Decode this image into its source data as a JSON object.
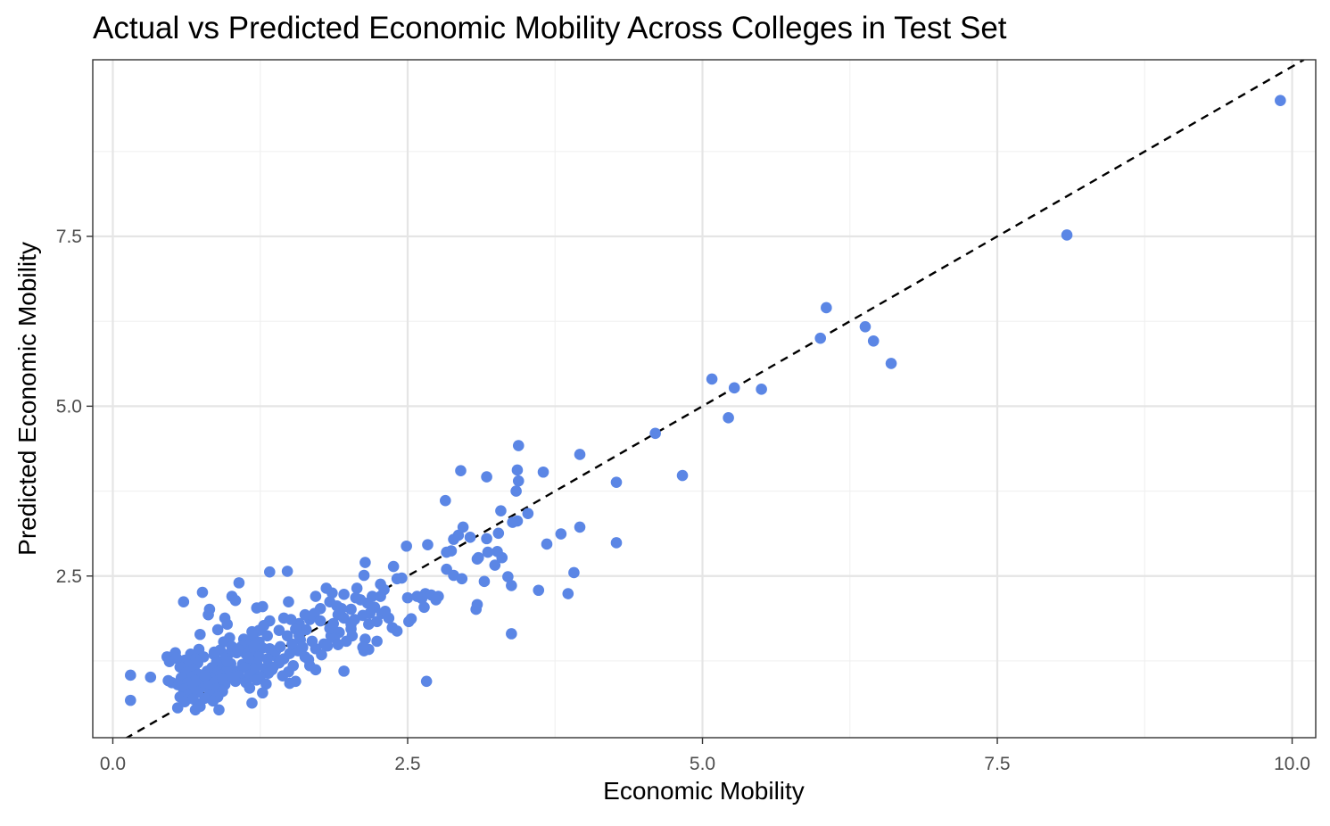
{
  "chart_data": {
    "type": "scatter",
    "title": "Actual vs Predicted Economic Mobility Across Colleges in Test Set",
    "xlabel": "Economic Mobility",
    "ylabel": "Predicted Economic Mobility",
    "xlim": [
      -0.17,
      10.2
    ],
    "ylim": [
      0.12,
      10.1
    ],
    "x_ticks": [
      0.0,
      2.5,
      5.0,
      7.5,
      10.0
    ],
    "x_tick_labels": [
      "0.0",
      "2.5",
      "5.0",
      "7.5",
      "10.0"
    ],
    "y_ticks": [
      2.5,
      5.0,
      7.5
    ],
    "y_tick_labels": [
      "2.5",
      "5.0",
      "7.5"
    ],
    "grid": true,
    "point_color": "#5b86e5",
    "reference_line": {
      "type": "identity",
      "style": "dashed",
      "color": "#000000"
    },
    "points": [
      [
        9.9,
        9.5
      ],
      [
        8.09,
        7.52
      ],
      [
        6.05,
        6.45
      ],
      [
        6.38,
        6.17
      ],
      [
        6.0,
        6.0
      ],
      [
        6.45,
        5.96
      ],
      [
        6.6,
        5.63
      ],
      [
        5.08,
        5.4
      ],
      [
        5.27,
        5.27
      ],
      [
        5.5,
        5.25
      ],
      [
        5.22,
        4.83
      ],
      [
        4.6,
        4.6
      ],
      [
        4.83,
        3.98
      ],
      [
        4.27,
        3.88
      ],
      [
        3.96,
        4.29
      ],
      [
        3.44,
        4.42
      ],
      [
        3.43,
        4.06
      ],
      [
        3.65,
        4.03
      ],
      [
        2.95,
        4.05
      ],
      [
        3.17,
        3.96
      ],
      [
        3.44,
        3.9
      ],
      [
        3.42,
        3.75
      ],
      [
        2.82,
        3.61
      ],
      [
        3.29,
        3.46
      ],
      [
        3.52,
        3.42
      ],
      [
        3.43,
        3.31
      ],
      [
        3.39,
        3.29
      ],
      [
        3.8,
        3.12
      ],
      [
        3.96,
        3.22
      ],
      [
        3.68,
        2.97
      ],
      [
        4.27,
        2.99
      ],
      [
        3.27,
        3.13
      ],
      [
        2.97,
        3.22
      ],
      [
        2.93,
        3.1
      ],
      [
        3.03,
        3.07
      ],
      [
        2.89,
        3.04
      ],
      [
        3.17,
        3.05
      ],
      [
        2.67,
        2.96
      ],
      [
        2.49,
        2.94
      ],
      [
        3.18,
        2.85
      ],
      [
        3.26,
        2.86
      ],
      [
        2.87,
        2.87
      ],
      [
        2.83,
        2.85
      ],
      [
        3.1,
        2.77
      ],
      [
        3.09,
        2.75
      ],
      [
        3.3,
        2.77
      ],
      [
        3.24,
        2.66
      ],
      [
        2.83,
        2.6
      ],
      [
        2.89,
        2.51
      ],
      [
        2.96,
        2.46
      ],
      [
        3.35,
        2.49
      ],
      [
        3.91,
        2.55
      ],
      [
        3.15,
        2.42
      ],
      [
        3.38,
        2.36
      ],
      [
        3.61,
        2.29
      ],
      [
        3.86,
        2.24
      ],
      [
        2.65,
        2.24
      ],
      [
        2.7,
        2.22
      ],
      [
        2.76,
        2.2
      ],
      [
        2.62,
        2.17
      ],
      [
        2.5,
        2.18
      ],
      [
        2.58,
        2.2
      ],
      [
        2.74,
        2.15
      ],
      [
        2.64,
        2.04
      ],
      [
        3.09,
        2.08
      ],
      [
        3.08,
        2.01
      ],
      [
        2.53,
        1.87
      ],
      [
        2.51,
        1.83
      ],
      [
        2.37,
        1.74
      ],
      [
        2.41,
        1.69
      ],
      [
        2.24,
        1.54
      ],
      [
        3.38,
        1.65
      ],
      [
        2.66,
        0.95
      ],
      [
        2.38,
        2.64
      ],
      [
        2.14,
        2.7
      ],
      [
        2.13,
        2.51
      ],
      [
        2.27,
        2.38
      ],
      [
        2.3,
        2.3
      ],
      [
        2.41,
        2.46
      ],
      [
        2.2,
        2.2
      ],
      [
        2.16,
        2.1
      ],
      [
        2.1,
        2.15
      ],
      [
        2.02,
        2.01
      ],
      [
        2.06,
        2.18
      ],
      [
        2.22,
        2.04
      ],
      [
        2.28,
        1.95
      ],
      [
        2.12,
        1.92
      ],
      [
        1.96,
        1.88
      ],
      [
        1.91,
        1.93
      ],
      [
        2.02,
        1.79
      ],
      [
        2.17,
        1.79
      ],
      [
        2.24,
        1.83
      ],
      [
        2.02,
        1.72
      ],
      [
        1.92,
        1.67
      ],
      [
        1.88,
        1.59
      ],
      [
        2.03,
        1.62
      ],
      [
        2.14,
        1.57
      ],
      [
        1.98,
        1.54
      ],
      [
        1.91,
        1.49
      ],
      [
        2.17,
        1.42
      ],
      [
        2.13,
        1.4
      ],
      [
        2.34,
        1.88
      ],
      [
        2.31,
        1.98
      ],
      [
        1.96,
        2.23
      ],
      [
        1.86,
        2.25
      ],
      [
        1.81,
        2.32
      ],
      [
        1.72,
        2.2
      ],
      [
        1.84,
        2.12
      ],
      [
        1.76,
        2.02
      ],
      [
        1.9,
        2.06
      ],
      [
        1.71,
        1.95
      ],
      [
        1.76,
        1.84
      ],
      [
        1.67,
        1.86
      ],
      [
        1.58,
        1.8
      ],
      [
        1.51,
        1.86
      ],
      [
        1.45,
        1.88
      ],
      [
        1.55,
        1.72
      ],
      [
        1.64,
        1.71
      ],
      [
        1.48,
        1.62
      ],
      [
        1.59,
        1.56
      ],
      [
        1.69,
        1.54
      ],
      [
        1.79,
        1.5
      ],
      [
        1.82,
        1.47
      ],
      [
        1.61,
        1.45
      ],
      [
        1.57,
        1.4
      ],
      [
        1.72,
        1.43
      ],
      [
        1.77,
        1.34
      ],
      [
        1.63,
        1.31
      ],
      [
        1.45,
        1.28
      ],
      [
        1.37,
        1.33
      ],
      [
        1.5,
        1.36
      ],
      [
        1.41,
        1.22
      ],
      [
        1.53,
        1.18
      ],
      [
        1.67,
        1.18
      ],
      [
        1.72,
        1.12
      ],
      [
        1.49,
        1.09
      ],
      [
        1.35,
        1.12
      ],
      [
        1.44,
        1.03
      ],
      [
        1.55,
        0.95
      ],
      [
        1.5,
        0.92
      ],
      [
        1.96,
        1.1
      ],
      [
        1.49,
        2.12
      ],
      [
        1.48,
        2.57
      ],
      [
        1.33,
        2.56
      ],
      [
        1.27,
        2.05
      ],
      [
        1.22,
        2.03
      ],
      [
        1.33,
        1.84
      ],
      [
        1.28,
        1.77
      ],
      [
        1.18,
        1.68
      ],
      [
        1.24,
        1.7
      ],
      [
        1.31,
        1.62
      ],
      [
        1.19,
        1.6
      ],
      [
        1.11,
        1.57
      ],
      [
        1.24,
        1.53
      ],
      [
        1.16,
        1.49
      ],
      [
        1.09,
        1.46
      ],
      [
        1.27,
        1.44
      ],
      [
        1.33,
        1.43
      ],
      [
        1.21,
        1.39
      ],
      [
        1.13,
        1.35
      ],
      [
        1.05,
        1.37
      ],
      [
        1.24,
        1.31
      ],
      [
        1.31,
        1.28
      ],
      [
        1.17,
        1.26
      ],
      [
        1.1,
        1.2
      ],
      [
        1.22,
        1.22
      ],
      [
        1.29,
        1.14
      ],
      [
        1.2,
        1.13
      ],
      [
        1.12,
        1.15
      ],
      [
        1.04,
        1.1
      ],
      [
        1.32,
        1.07
      ],
      [
        1.25,
        1.02
      ],
      [
        1.16,
        1.04
      ],
      [
        1.07,
        1.03
      ],
      [
        1.22,
        0.97
      ],
      [
        1.13,
        0.93
      ],
      [
        1.3,
        0.91
      ],
      [
        1.04,
        0.95
      ],
      [
        1.16,
        0.85
      ],
      [
        1.27,
        0.78
      ],
      [
        1.18,
        0.63
      ],
      [
        1.07,
        2.4
      ],
      [
        1.01,
        2.2
      ],
      [
        1.04,
        2.14
      ],
      [
        0.95,
        1.88
      ],
      [
        0.97,
        1.79
      ],
      [
        0.89,
        1.71
      ],
      [
        0.99,
        1.59
      ],
      [
        0.94,
        1.53
      ],
      [
        1.01,
        1.46
      ],
      [
        0.91,
        1.41
      ],
      [
        0.98,
        1.35
      ],
      [
        0.86,
        1.34
      ],
      [
        0.95,
        1.29
      ],
      [
        0.88,
        1.24
      ],
      [
        1.0,
        1.21
      ],
      [
        0.92,
        1.17
      ],
      [
        0.84,
        1.15
      ],
      [
        0.97,
        1.12
      ],
      [
        0.88,
        1.08
      ],
      [
        0.8,
        1.1
      ],
      [
        0.91,
        1.04
      ],
      [
        0.99,
        1.01
      ],
      [
        0.83,
        1.0
      ],
      [
        0.9,
        0.97
      ],
      [
        0.78,
        0.96
      ],
      [
        0.86,
        0.93
      ],
      [
        0.95,
        0.9
      ],
      [
        0.8,
        0.88
      ],
      [
        0.88,
        0.84
      ],
      [
        0.74,
        0.85
      ],
      [
        0.93,
        0.8
      ],
      [
        0.82,
        0.76
      ],
      [
        0.89,
        0.72
      ],
      [
        0.78,
        0.7
      ],
      [
        0.85,
        0.66
      ],
      [
        0.72,
        0.62
      ],
      [
        0.76,
        2.26
      ],
      [
        0.82,
        2.01
      ],
      [
        0.81,
        1.93
      ],
      [
        0.74,
        1.64
      ],
      [
        0.6,
        2.12
      ],
      [
        0.73,
        1.42
      ],
      [
        0.66,
        1.35
      ],
      [
        0.77,
        1.31
      ],
      [
        0.7,
        1.28
      ],
      [
        0.61,
        1.26
      ],
      [
        0.72,
        1.22
      ],
      [
        0.64,
        1.19
      ],
      [
        0.57,
        1.16
      ],
      [
        0.69,
        1.13
      ],
      [
        0.62,
        1.08
      ],
      [
        0.73,
        1.05
      ],
      [
        0.67,
        1.01
      ],
      [
        0.58,
        1.0
      ],
      [
        0.7,
        0.96
      ],
      [
        0.63,
        0.92
      ],
      [
        0.55,
        0.9
      ],
      [
        0.66,
        0.87
      ],
      [
        0.6,
        0.83
      ],
      [
        0.72,
        0.79
      ],
      [
        0.64,
        0.76
      ],
      [
        0.57,
        0.72
      ],
      [
        0.68,
        0.69
      ],
      [
        0.61,
        0.65
      ],
      [
        0.74,
        0.58
      ],
      [
        0.55,
        0.56
      ],
      [
        0.7,
        0.53
      ],
      [
        0.9,
        0.53
      ],
      [
        0.46,
        1.31
      ],
      [
        0.53,
        1.37
      ],
      [
        0.48,
        1.24
      ],
      [
        0.5,
        0.93
      ],
      [
        0.47,
        0.96
      ],
      [
        0.32,
        1.01
      ],
      [
        0.15,
        1.04
      ],
      [
        0.15,
        0.67
      ],
      [
        0.54,
        1.29
      ],
      [
        0.86,
        1.38
      ],
      [
        1.06,
        1.42
      ],
      [
        1.38,
        1.4
      ],
      [
        1.58,
        1.62
      ],
      [
        1.85,
        1.62
      ],
      [
        2.05,
        1.86
      ],
      [
        2.27,
        2.2
      ],
      [
        2.07,
        2.32
      ],
      [
        1.94,
        2.02
      ],
      [
        1.63,
        1.93
      ],
      [
        1.41,
        1.7
      ],
      [
        1.2,
        1.47
      ],
      [
        0.97,
        1.24
      ],
      [
        0.78,
        1.03
      ],
      [
        1.36,
        1.16
      ],
      [
        1.66,
        1.27
      ],
      [
        1.84,
        1.73
      ],
      [
        2.18,
        1.95
      ],
      [
        2.45,
        2.47
      ],
      [
        2.12,
        1.45
      ],
      [
        1.87,
        1.8
      ],
      [
        1.52,
        1.5
      ],
      [
        1.15,
        1.3
      ],
      [
        0.93,
        0.98
      ],
      [
        1.42,
        1.46
      ]
    ]
  }
}
